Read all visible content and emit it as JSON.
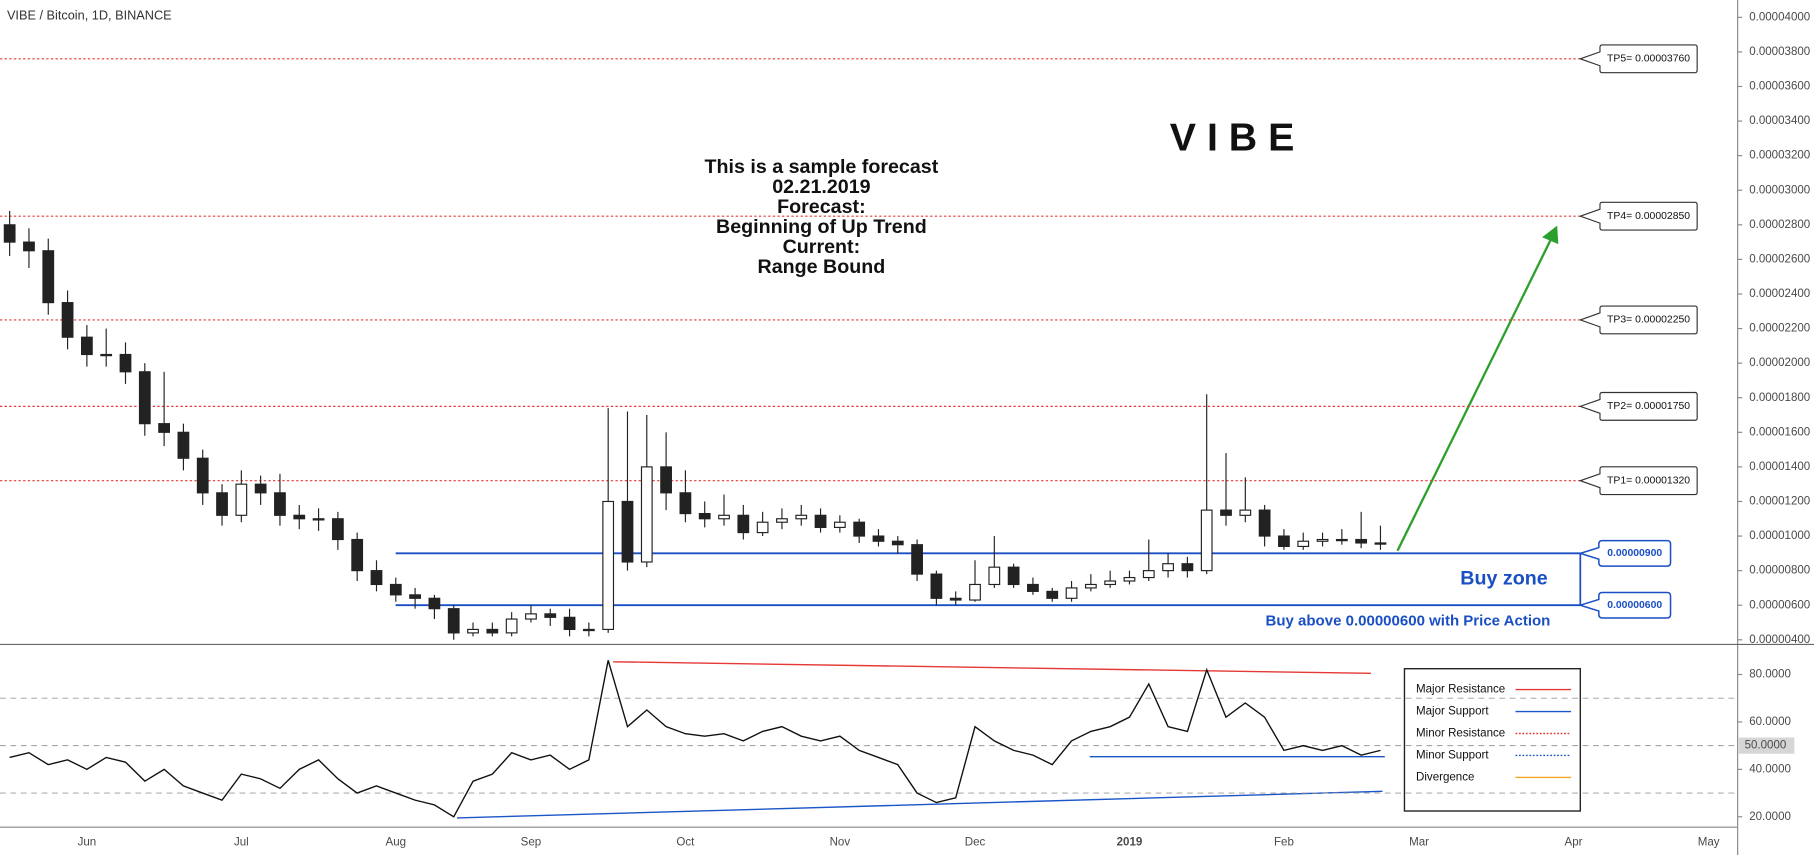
{
  "chart_data": [
    {
      "type": "candlestick",
      "title": "VIBE / Bitcoin, 1D, BINANCE",
      "categories": [
        null,
        null,
        null,
        null,
        "Jun",
        null,
        null,
        null,
        null,
        null,
        null,
        null,
        "Jul",
        null,
        null,
        null,
        null,
        null,
        null,
        null,
        "Aug",
        null,
        null,
        null,
        null,
        null,
        null,
        "Sep",
        null,
        null,
        null,
        null,
        null,
        null,
        null,
        "Oct",
        null,
        null,
        null,
        null,
        null,
        null,
        null,
        "Nov",
        null,
        null,
        null,
        null,
        null,
        null,
        "Dec",
        null,
        null,
        null,
        null,
        null,
        null,
        null,
        "2019",
        null,
        null,
        null,
        null,
        null,
        null,
        null,
        "Feb",
        null,
        null,
        null,
        null,
        null,
        null,
        "Mar",
        null,
        null,
        null,
        null,
        null,
        null,
        null,
        "Apr",
        null,
        null,
        null,
        null,
        null,
        null,
        "May",
        null
      ],
      "open": [
        2.8e-05,
        2.7e-05,
        2.65e-05,
        2.35e-05,
        2.15e-05,
        2.05e-05,
        2.05e-05,
        1.95e-05,
        1.65e-05,
        1.6e-05,
        1.45e-05,
        1.25e-05,
        1.12e-05,
        1.3e-05,
        1.25e-05,
        1.12e-05,
        1.1e-05,
        1.1e-05,
        9.8e-06,
        8e-06,
        7.2e-06,
        6.6e-06,
        6.4e-06,
        5.8e-06,
        4.4e-06,
        4.6e-06,
        4.4e-06,
        5.2e-06,
        5.5e-06,
        5.3e-06,
        4.6e-06,
        4.6e-06,
        1.2e-05,
        8.5e-06,
        1.4e-05,
        1.25e-05,
        1.13e-05,
        1.1e-05,
        1.12e-05,
        1.02e-05,
        1.08e-05,
        1.1e-05,
        1.12e-05,
        1.05e-05,
        1.08e-05,
        1e-05,
        9.7e-06,
        9.5e-06,
        7.8e-06,
        6.4e-06,
        6.3e-06,
        7.2e-06,
        8.2e-06,
        7.2e-06,
        6.8e-06,
        6.4e-06,
        7e-06,
        7.2e-06,
        7.4e-06,
        7.6e-06,
        8e-06,
        8.4e-06,
        8e-06,
        1.15e-05,
        1.12e-05,
        1.15e-05,
        1e-05,
        9.4e-06,
        9.7e-06,
        9.8e-06,
        9.8e-06,
        9.6e-06,
        null,
        null,
        null,
        null,
        null,
        null,
        null,
        null,
        null,
        null,
        null,
        null,
        null,
        null,
        null,
        null,
        null,
        null
      ],
      "high": [
        2.88e-05,
        2.78e-05,
        2.72e-05,
        2.42e-05,
        2.22e-05,
        2.2e-05,
        2.12e-05,
        2e-05,
        1.95e-05,
        1.65e-05,
        1.5e-05,
        1.3e-05,
        1.38e-05,
        1.35e-05,
        1.36e-05,
        1.18e-05,
        1.16e-05,
        1.14e-05,
        1.02e-05,
        8.6e-06,
        7.6e-06,
        7e-06,
        6.6e-06,
        6e-06,
        5e-06,
        5e-06,
        5.6e-06,
        6e-06,
        5.8e-06,
        5.8e-06,
        5e-06,
        1.74e-05,
        1.72e-05,
        1.7e-05,
        1.6e-05,
        1.38e-05,
        1.2e-05,
        1.24e-05,
        1.18e-05,
        1.14e-05,
        1.16e-05,
        1.18e-05,
        1.16e-05,
        1.12e-05,
        1.1e-05,
        1.04e-05,
        1e-05,
        9.8e-06,
        8e-06,
        6.8e-06,
        8.6e-06,
        1e-05,
        8.4e-06,
        7.6e-06,
        7e-06,
        7.4e-06,
        7.8e-06,
        8e-06,
        8e-06,
        9.8e-06,
        9e-06,
        8.8e-06,
        1.82e-05,
        1.48e-05,
        1.34e-05,
        1.18e-05,
        1.04e-05,
        1.02e-05,
        1.02e-05,
        1.04e-05,
        1.14e-05,
        1.06e-05,
        null,
        null,
        null,
        null,
        null,
        null,
        null,
        null,
        null,
        null,
        null,
        null,
        null,
        null,
        null,
        null,
        null,
        null
      ],
      "low": [
        2.62e-05,
        2.55e-05,
        2.28e-05,
        2.08e-05,
        1.98e-05,
        1.98e-05,
        1.88e-05,
        1.58e-05,
        1.52e-05,
        1.38e-05,
        1.18e-05,
        1.06e-05,
        1.08e-05,
        1.18e-05,
        1.06e-05,
        1.04e-05,
        1.03e-05,
        9.2e-06,
        7.4e-06,
        6.8e-06,
        6.2e-06,
        5.8e-06,
        5.2e-06,
        4e-06,
        4.2e-06,
        4.2e-06,
        4.2e-06,
        5e-06,
        4.8e-06,
        4.2e-06,
        4.2e-06,
        4.4e-06,
        8e-06,
        8.2e-06,
        1.15e-05,
        1.08e-05,
        1.05e-05,
        1.06e-05,
        9.8e-06,
        1e-05,
        1.04e-05,
        1.06e-05,
        1.02e-05,
        1.02e-05,
        9.6e-06,
        9.4e-06,
        9e-06,
        7.4e-06,
        6e-06,
        6e-06,
        6.2e-06,
        7e-06,
        7e-06,
        6.6e-06,
        6.2e-06,
        6.2e-06,
        6.8e-06,
        7e-06,
        7.2e-06,
        7.4e-06,
        7.6e-06,
        7.6e-06,
        7.8e-06,
        1.06e-05,
        1.08e-05,
        9.4e-06,
        9.2e-06,
        9.2e-06,
        9.4e-06,
        9.5e-06,
        9.3e-06,
        9.2e-06,
        null,
        null,
        null,
        null,
        null,
        null,
        null,
        null,
        null,
        null,
        null,
        null,
        null,
        null,
        null,
        null,
        null,
        null
      ],
      "close": [
        2.7e-05,
        2.65e-05,
        2.35e-05,
        2.15e-05,
        2.05e-05,
        2.05e-05,
        1.95e-05,
        1.65e-05,
        1.6e-05,
        1.45e-05,
        1.25e-05,
        1.12e-05,
        1.3e-05,
        1.25e-05,
        1.12e-05,
        1.1e-05,
        1.1e-05,
        9.8e-06,
        8e-06,
        7.2e-06,
        6.6e-06,
        6.4e-06,
        5.8e-06,
        4.4e-06,
        4.6e-06,
        4.4e-06,
        5.2e-06,
        5.5e-06,
        5.3e-06,
        4.6e-06,
        4.6e-06,
        1.2e-05,
        8.5e-06,
        1.4e-05,
        1.25e-05,
        1.13e-05,
        1.1e-05,
        1.12e-05,
        1.02e-05,
        1.08e-05,
        1.1e-05,
        1.12e-05,
        1.05e-05,
        1.08e-05,
        1e-05,
        9.7e-06,
        9.5e-06,
        7.8e-06,
        6.4e-06,
        6.3e-06,
        7.2e-06,
        8.2e-06,
        7.2e-06,
        6.8e-06,
        6.4e-06,
        7e-06,
        7.2e-06,
        7.4e-06,
        7.6e-06,
        8e-06,
        8.4e-06,
        8e-06,
        1.15e-05,
        1.12e-05,
        1.15e-05,
        1e-05,
        9.4e-06,
        9.7e-06,
        9.8e-06,
        9.8e-06,
        9.6e-06,
        9.6e-06,
        null,
        null,
        null,
        null,
        null,
        null,
        null,
        null,
        null,
        null,
        null,
        null,
        null,
        null,
        null,
        null,
        null,
        null
      ],
      "up_color": "#ffffff",
      "down_color": "#222222",
      "ylim": [
        3.8e-06,
        4.1e-05
      ],
      "yticks": [
        {
          "value": 4e-06,
          "label": "0.00000400"
        },
        {
          "value": 6e-06,
          "label": "0.00000600"
        },
        {
          "value": 8e-06,
          "label": "0.00000800"
        },
        {
          "value": 1e-05,
          "label": "0.00001000"
        },
        {
          "value": 1.2e-05,
          "label": "0.00001200"
        },
        {
          "value": 1.4e-05,
          "label": "0.00001400"
        },
        {
          "value": 1.6e-05,
          "label": "0.00001600"
        },
        {
          "value": 1.8e-05,
          "label": "0.00001800"
        },
        {
          "value": 2e-05,
          "label": "0.00002000"
        },
        {
          "value": 2.2e-05,
          "label": "0.00002200"
        },
        {
          "value": 2.4e-05,
          "label": "0.00002400"
        },
        {
          "value": 2.6e-05,
          "label": "0.00002600"
        },
        {
          "value": 2.8e-05,
          "label": "0.00002800"
        },
        {
          "value": 3e-05,
          "label": "0.00003000"
        },
        {
          "value": 3.2e-05,
          "label": "0.00003200"
        },
        {
          "value": 3.4e-05,
          "label": "0.00003400"
        },
        {
          "value": 3.6e-05,
          "label": "0.00003600"
        },
        {
          "value": 3.8e-05,
          "label": "0.00003800"
        },
        {
          "value": 4e-05,
          "label": "0.00004000"
        }
      ],
      "levels": [
        {
          "value": 3.76e-05,
          "label": "TP5= 0.00003760"
        },
        {
          "value": 2.85e-05,
          "label": "TP4= 0.00002850"
        },
        {
          "value": 2.25e-05,
          "label": "TP3= 0.00002250"
        },
        {
          "value": 1.75e-05,
          "label": "TP2= 0.00001750"
        },
        {
          "value": 1.32e-05,
          "label": "TP1= 0.00001320"
        }
      ],
      "level_color": "#e53935",
      "zone": [
        {
          "value": 9e-06,
          "label": "0.00000900"
        },
        {
          "value": 6e-06,
          "label": "0.00000600"
        }
      ],
      "zone_color": "#1a4fc4",
      "zone_title": "Buy zone",
      "zone_note": "Buy above 0.00000600 with Price Action",
      "symbol": "V I B E",
      "forecast": [
        "This is a sample forecast",
        "02.21.2019",
        "Forecast:",
        "Beginning of Up Trend",
        "Current:",
        "Range Bound"
      ]
    },
    {
      "type": "line",
      "values": [
        45,
        47,
        42,
        44,
        40,
        45,
        43,
        35,
        40,
        33,
        30,
        27,
        38,
        36,
        32,
        40,
        44,
        36,
        30,
        33,
        30,
        27,
        25,
        20,
        35,
        38,
        47,
        44,
        46,
        40,
        44,
        86,
        58,
        65,
        58,
        55,
        54,
        55,
        52,
        56,
        58,
        54,
        52,
        54,
        48,
        45,
        42,
        30,
        26,
        28,
        58,
        52,
        48,
        46,
        42,
        52,
        56,
        58,
        62,
        76,
        58,
        56,
        82,
        62,
        68,
        62,
        48,
        50,
        48,
        50,
        46,
        48,
        null,
        null,
        null,
        null,
        null,
        null,
        null,
        null,
        null,
        null,
        null,
        null,
        null,
        null,
        null,
        null,
        null,
        null
      ],
      "color": "#111111",
      "ylim": [
        15.6,
        92.2
      ],
      "yticks": [
        {
          "value": 20,
          "label": "20.0000"
        },
        {
          "value": 40,
          "label": "40.0000"
        },
        {
          "value": 60,
          "label": "60.0000"
        },
        {
          "value": 80,
          "label": "80.0000"
        }
      ],
      "highlighted_tick": {
        "value": 50,
        "label": "50.0000"
      },
      "levels": [
        30,
        50,
        70
      ],
      "legend": [
        {
          "name": "Major Resistance",
          "color": "#e53935",
          "style": "solid"
        },
        {
          "name": "Major Support",
          "color": "#1a56c8",
          "style": "solid"
        },
        {
          "name": "Minor Resistance",
          "color": "#e53935",
          "style": "dotted"
        },
        {
          "name": "Minor Support",
          "color": "#1a56c8",
          "style": "dotted"
        },
        {
          "name": "Divergence",
          "color": "#f5a623",
          "style": "solid"
        }
      ]
    }
  ]
}
